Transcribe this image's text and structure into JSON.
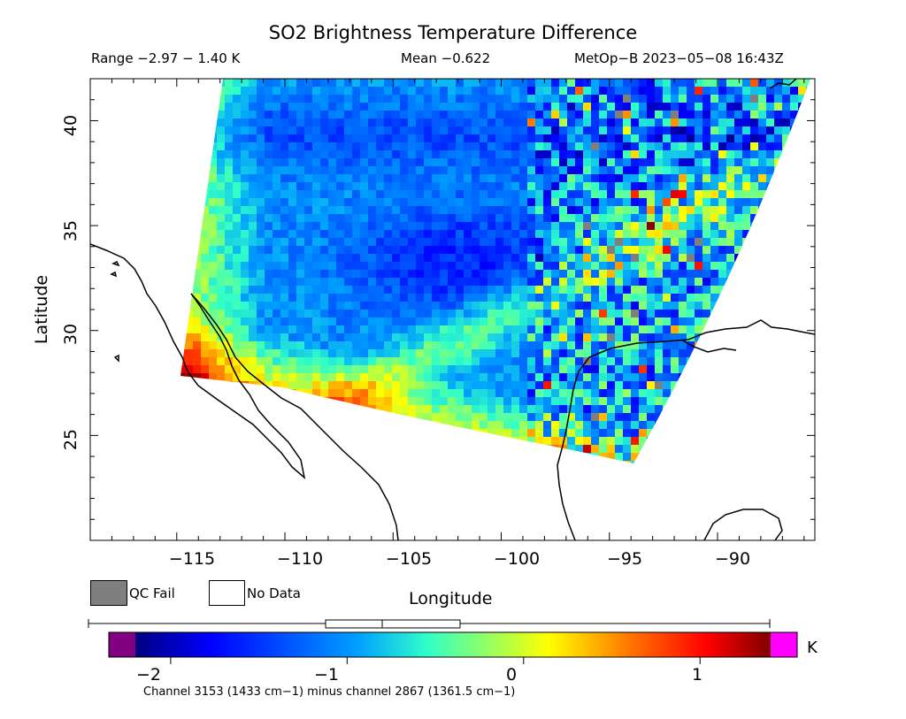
{
  "header": {
    "title": "SO2 Brightness Temperature Difference",
    "range_text": "Range −2.97 − 1.40 K",
    "mean_text": "Mean −0.622",
    "satellite_text": "MetOp−B 2023−05−08 16:43Z"
  },
  "map": {
    "xlabel": "Longitude",
    "ylabel": "Latitude",
    "lon_range": [
      -119,
      -85.5
    ],
    "lat_range": [
      20,
      42
    ],
    "x_ticks": [
      "−115",
      "−110",
      "−105",
      "−100",
      "−95",
      "−90"
    ],
    "y_ticks": [
      "40",
      "35",
      "30",
      "25"
    ],
    "coastline_color": "#000000",
    "swath_corners": {
      "top_left": [
        -113.8,
        42
      ],
      "top_right": [
        -85.9,
        42
      ],
      "bottom_right": [
        -94.2,
        23.8
      ],
      "bottom_left": [
        -115.3,
        27.8
      ]
    },
    "features": [
      {
        "label": "low BTD band (blue)",
        "value": -1.8
      },
      {
        "label": "high BTD coastal (red)",
        "value": 1.3
      }
    ]
  },
  "legend": {
    "qc_fail_label": "QC Fail",
    "no_data_label": "No Data",
    "qc_fail_color": "#7f7f7f",
    "no_data_color": "#ffffff"
  },
  "colorbar": {
    "min": -2.2,
    "max": 1.4,
    "ticks": [
      "−2",
      "−1",
      "0",
      "1"
    ],
    "tick_values": [
      -2,
      -1,
      0,
      1
    ],
    "unit": "K",
    "under_color": "#800080",
    "over_color": "#ff00ff",
    "boxplot": {
      "min": -2.2,
      "q1": -0.97,
      "median": -0.7,
      "q3": -0.27,
      "max": 1.4
    },
    "caption": "Channel 3153 (1433 cm−1) minus channel 2867 (1361.5 cm−1)"
  }
}
